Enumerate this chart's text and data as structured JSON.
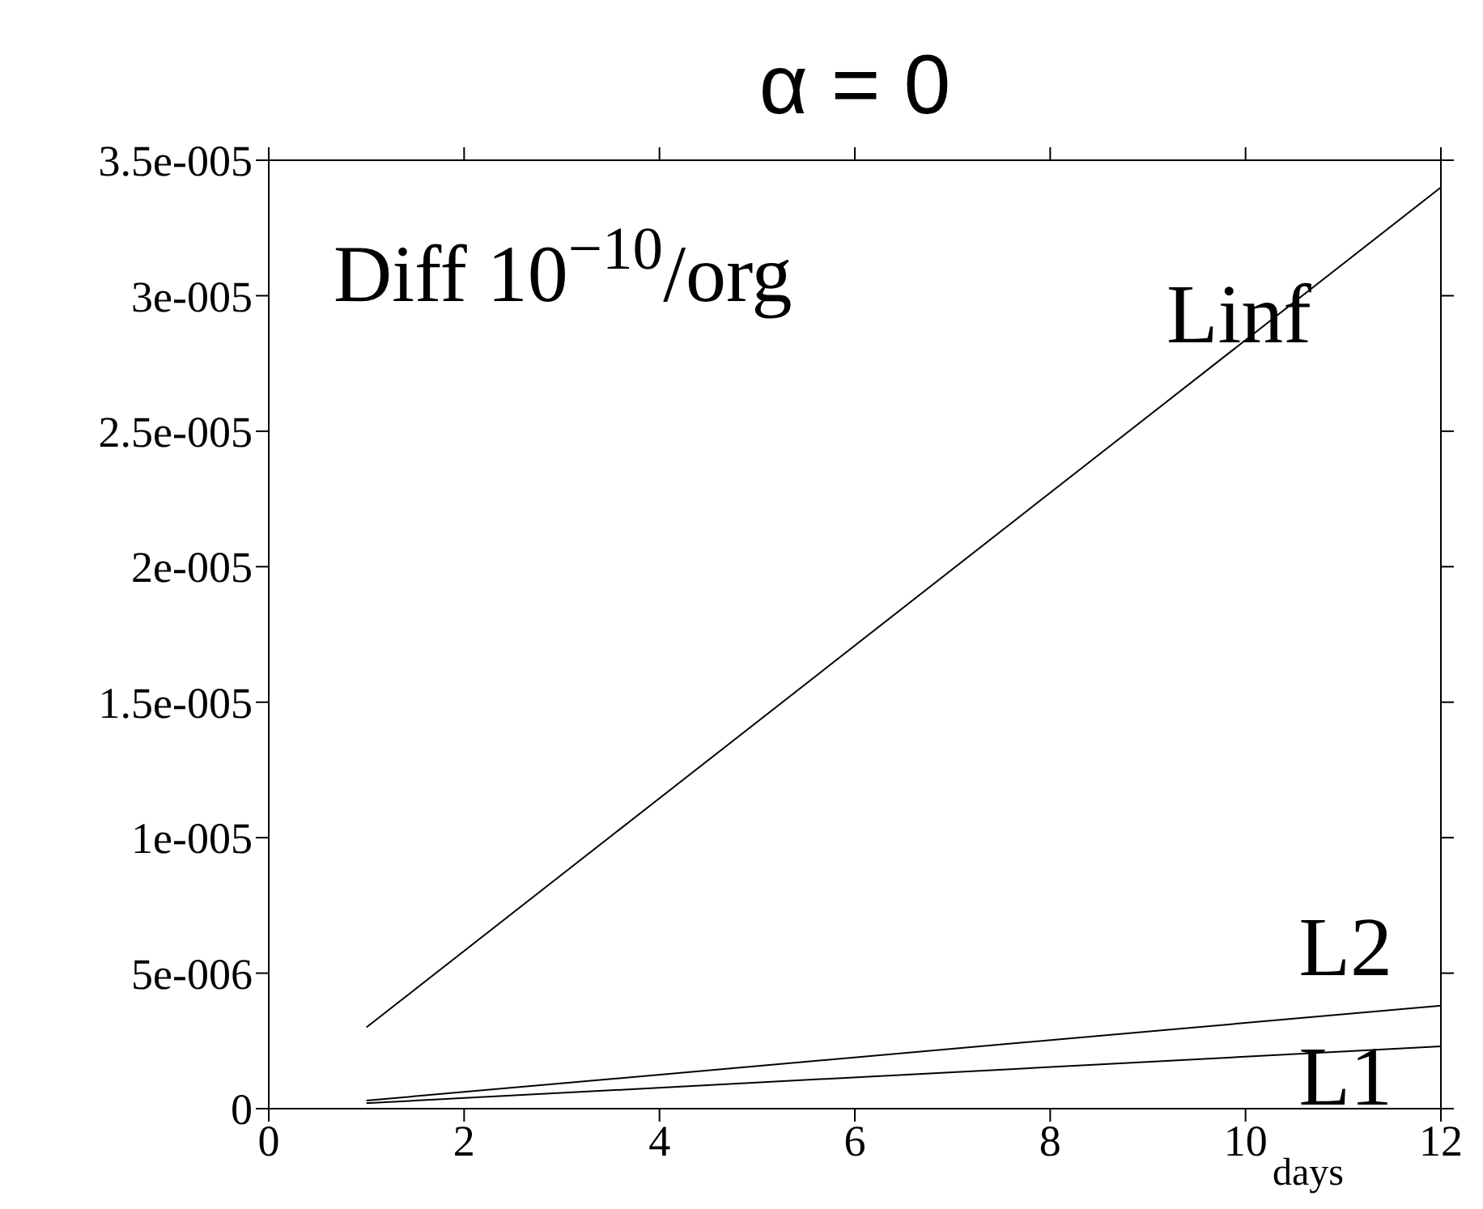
{
  "chart_data": {
    "type": "line",
    "title": "α = 0",
    "xlabel": "days",
    "annotations": [
      "Diff 10$^{−10}$/org"
    ],
    "xlim": [
      0,
      12
    ],
    "xticks": [
      0,
      2,
      4,
      6,
      8,
      10,
      12
    ],
    "ylim": [
      0,
      3.5e-05
    ],
    "yticks": [
      {
        "value": 0,
        "label": "0"
      },
      {
        "value": 5e-06,
        "label": "5e-006"
      },
      {
        "value": 1e-05,
        "label": "1e-005"
      },
      {
        "value": 1.5e-05,
        "label": "1.5e-005"
      },
      {
        "value": 2e-05,
        "label": "2e-005"
      },
      {
        "value": 2.5e-05,
        "label": "2.5e-005"
      },
      {
        "value": 3e-05,
        "label": "3e-005"
      },
      {
        "value": 3.5e-05,
        "label": "3.5e-005"
      }
    ],
    "legend": "right",
    "marker": "none",
    "line_style": "solid",
    "x": [
      1,
      12
    ],
    "series": [
      {
        "name": "Linf",
        "color": "#000000",
        "values": [
          3e-06,
          3.4e-05
        ]
      },
      {
        "name": "L2",
        "color": "#000000",
        "values": [
          3e-07,
          3.8e-06
        ]
      },
      {
        "name": "L1",
        "color": "#000000",
        "values": [
          2e-07,
          2.3e-06
        ]
      }
    ]
  }
}
